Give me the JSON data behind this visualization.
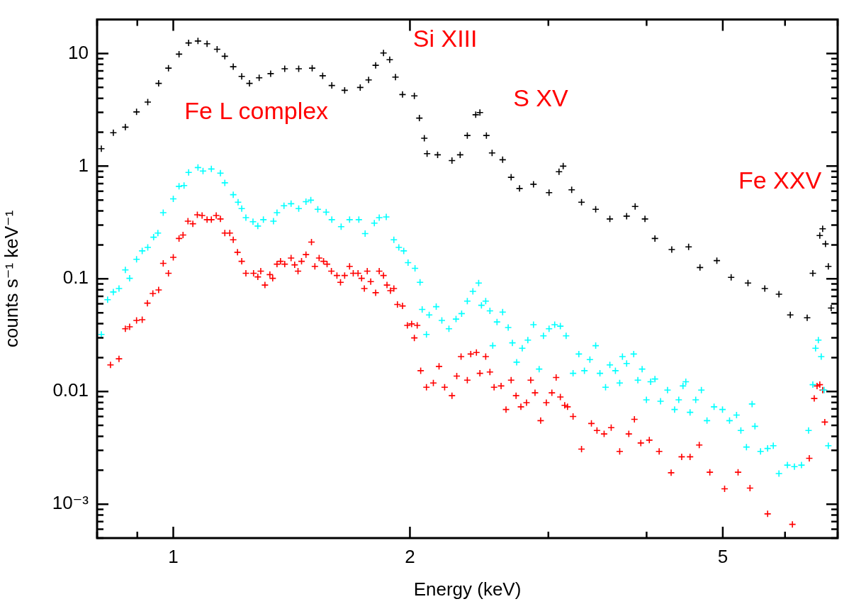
{
  "chart_data": {
    "type": "scatter",
    "xlabel": "Energy (keV)",
    "ylabel": "counts s⁻¹ keV⁻¹",
    "log": "xy",
    "grid": false,
    "legend": false,
    "marker": "cross",
    "xlim": [
      0.8,
      7
    ],
    "ylim": [
      0.0005,
      20
    ],
    "xticks": [
      {
        "value": 0.8,
        "label": null
      },
      {
        "value": 0.9,
        "label": null
      },
      1,
      2,
      {
        "value": 3,
        "label": null
      },
      {
        "value": 4,
        "label": null
      },
      5,
      {
        "value": 6,
        "label": null
      },
      {
        "value": 7,
        "label": null
      }
    ],
    "yticks": [
      {
        "value": 0.0005,
        "label": null
      },
      {
        "value": 0.0006,
        "label": null
      },
      {
        "value": 0.0007,
        "label": null
      },
      {
        "value": 0.0008,
        "label": null
      },
      {
        "value": 0.0009,
        "label": null
      },
      {
        "value": 0.001,
        "label": "10⁻³"
      },
      {
        "value": 0.002,
        "label": null
      },
      {
        "value": 0.003,
        "label": null
      },
      {
        "value": 0.004,
        "label": null
      },
      {
        "value": 0.005,
        "label": null
      },
      {
        "value": 0.006,
        "label": null
      },
      {
        "value": 0.007,
        "label": null
      },
      {
        "value": 0.008,
        "label": null
      },
      {
        "value": 0.009,
        "label": null
      },
      0.01,
      {
        "value": 0.02,
        "label": null
      },
      {
        "value": 0.03,
        "label": null
      },
      {
        "value": 0.04,
        "label": null
      },
      {
        "value": 0.05,
        "label": null
      },
      {
        "value": 0.06,
        "label": null
      },
      {
        "value": 0.07,
        "label": null
      },
      {
        "value": 0.08,
        "label": null
      },
      {
        "value": 0.09,
        "label": null
      },
      0.1,
      {
        "value": 0.2,
        "label": null
      },
      {
        "value": 0.3,
        "label": null
      },
      {
        "value": 0.4,
        "label": null
      },
      {
        "value": 0.5,
        "label": null
      },
      {
        "value": 0.6,
        "label": null
      },
      {
        "value": 0.7,
        "label": null
      },
      {
        "value": 0.8,
        "label": null
      },
      {
        "value": 0.9,
        "label": null
      },
      1,
      {
        "value": 2,
        "label": null
      },
      {
        "value": 3,
        "label": null
      },
      {
        "value": 4,
        "label": null
      },
      {
        "value": 5,
        "label": null
      },
      {
        "value": 6,
        "label": null
      },
      {
        "value": 7,
        "label": null
      },
      {
        "value": 8,
        "label": null
      },
      {
        "value": 9,
        "label": null
      },
      10,
      {
        "value": 20,
        "label": null
      }
    ],
    "annotations": [
      "Fe L complex",
      "Si XIII",
      "S XV",
      "Fe XXV"
    ],
    "series": [
      {
        "color": "#000000",
        "x": [
          0.81,
          0.839,
          0.869,
          0.898,
          0.928,
          0.958,
          0.986,
          1.017,
          1.046,
          1.075,
          1.104,
          1.137,
          1.163,
          1.192,
          1.222,
          1.25,
          1.286,
          1.33,
          1.386,
          1.444,
          1.502,
          1.549,
          1.591,
          1.652,
          1.729,
          1.772,
          1.809,
          1.851,
          1.885,
          1.917,
          1.957,
          2.026,
          2.056,
          2.086,
          2.103,
          2.169,
          2.262,
          2.317,
          2.366,
          2.425,
          2.455,
          2.502,
          2.544,
          2.624,
          2.69,
          2.757,
          2.872,
          3.006,
          3.095,
          3.133,
          3.212,
          3.306,
          3.446,
          3.592,
          3.773,
          3.868,
          3.981,
          4.099,
          4.306,
          4.524,
          4.677,
          4.914,
          5.124,
          5.383,
          5.655,
          5.894,
          6.093,
          6.402,
          6.509,
          6.643,
          6.699,
          6.755,
          6.811,
          6.868
        ],
        "values": [
          1.43,
          1.98,
          2.22,
          3.03,
          3.7,
          5.43,
          7.41,
          9.86,
          12.4,
          12.9,
          12.2,
          10.9,
          9.45,
          7.63,
          6.26,
          5.43,
          6.08,
          6.62,
          7.31,
          7.31,
          7.41,
          6.34,
          5.2,
          4.71,
          4.99,
          5.82,
          7.85,
          10.1,
          8.8,
          6.17,
          4.32,
          4.2,
          2.67,
          1.77,
          1.29,
          1.26,
          1.12,
          1.26,
          1.87,
          2.86,
          2.99,
          1.87,
          1.31,
          1.14,
          0.796,
          0.634,
          0.691,
          0.582,
          0.893,
          1.0,
          0.617,
          0.478,
          0.414,
          0.34,
          0.36,
          0.439,
          0.34,
          0.228,
          0.182,
          0.192,
          0.126,
          0.145,
          0.103,
          0.0918,
          0.082,
          0.0731,
          0.0478,
          0.0451,
          0.112,
          0.242,
          0.278,
          0.204,
          0.129,
          0.0551
        ]
      },
      {
        "color": "#00ffff",
        "x": [
          0.81,
          0.825,
          0.839,
          0.853,
          0.869,
          0.88,
          0.898,
          0.913,
          0.928,
          0.944,
          0.956,
          0.971,
          1.0,
          1.017,
          1.032,
          1.046,
          1.075,
          1.091,
          1.118,
          1.148,
          1.163,
          1.192,
          1.209,
          1.222,
          1.237,
          1.263,
          1.281,
          1.302,
          1.341,
          1.355,
          1.383,
          1.412,
          1.444,
          1.475,
          1.496,
          1.527,
          1.565,
          1.591,
          1.635,
          1.676,
          1.722,
          1.754,
          1.802,
          1.828,
          1.866,
          1.908,
          1.936,
          1.964,
          1.989,
          2.03,
          2.06,
          2.073,
          2.099,
          2.116,
          2.16,
          2.196,
          2.242,
          2.289,
          2.327,
          2.366,
          2.405,
          2.446,
          2.466,
          2.497,
          2.528,
          2.549,
          2.581,
          2.624,
          2.667,
          2.7,
          2.734,
          2.779,
          2.825,
          2.872,
          2.92,
          2.957,
          3.006,
          3.056,
          3.107,
          3.16,
          3.225,
          3.28,
          3.334,
          3.388,
          3.446,
          3.489,
          3.547,
          3.592,
          3.651,
          3.697,
          3.727,
          3.773,
          3.852,
          3.899,
          3.948,
          3.998,
          4.048,
          4.099,
          4.167,
          4.253,
          4.342,
          4.395,
          4.45,
          4.487,
          4.543,
          4.619,
          4.696,
          4.774,
          4.874,
          4.996,
          5.1,
          5.206,
          5.272,
          5.359,
          5.448,
          5.494,
          5.585,
          5.702,
          5.797,
          5.894,
          6.042,
          6.167,
          6.296,
          6.428,
          6.509,
          6.561,
          6.615,
          6.671,
          6.727,
          6.811
        ],
        "values": [
          0.0321,
          0.0653,
          0.0764,
          0.082,
          0.12,
          0.101,
          0.149,
          0.177,
          0.19,
          0.234,
          0.255,
          0.386,
          0.513,
          0.662,
          0.672,
          0.879,
          0.972,
          0.906,
          0.944,
          0.867,
          0.711,
          0.558,
          0.478,
          0.42,
          0.349,
          0.321,
          0.294,
          0.335,
          0.325,
          0.386,
          0.445,
          0.464,
          0.42,
          0.484,
          0.499,
          0.414,
          0.391,
          0.335,
          0.29,
          0.335,
          0.335,
          0.252,
          0.312,
          0.349,
          0.354,
          0.222,
          0.19,
          0.177,
          0.139,
          0.124,
          0.0931,
          0.0535,
          0.0321,
          0.0478,
          0.0566,
          0.0427,
          0.036,
          0.0439,
          0.0491,
          0.0634,
          0.0774,
          0.0918,
          0.0582,
          0.0634,
          0.052,
          0.0255,
          0.0414,
          0.0506,
          0.037,
          0.027,
          0.0182,
          0.0242,
          0.0286,
          0.0392,
          0.0158,
          0.0312,
          0.036,
          0.0392,
          0.038,
          0.0312,
          0.0145,
          0.0215,
          0.0153,
          0.0192,
          0.0255,
          0.0145,
          0.0109,
          0.0172,
          0.0153,
          0.0119,
          0.0204,
          0.0177,
          0.0215,
          0.0126,
          0.0158,
          0.00843,
          0.0122,
          0.0129,
          0.0082,
          0.0103,
          0.00692,
          0.00843,
          0.0112,
          0.0122,
          0.00653,
          0.00843,
          0.0103,
          0.00551,
          0.00731,
          0.00692,
          0.00551,
          0.00617,
          0.00451,
          0.00321,
          0.00774,
          0.00491,
          0.00294,
          0.00312,
          0.0033,
          0.00187,
          0.00222,
          0.00215,
          0.00222,
          0.00451,
          0.0115,
          0.0242,
          0.0286,
          0.0204,
          0.0103,
          0.0033
        ]
      },
      {
        "color": "#ff0000",
        "x": [
          0.832,
          0.853,
          0.869,
          0.88,
          0.898,
          0.913,
          0.927,
          0.942,
          0.958,
          0.971,
          0.986,
          1.0,
          1.017,
          1.029,
          1.044,
          1.059,
          1.073,
          1.088,
          1.104,
          1.118,
          1.134,
          1.148,
          1.163,
          1.18,
          1.192,
          1.207,
          1.222,
          1.237,
          1.265,
          1.281,
          1.292,
          1.308,
          1.327,
          1.338,
          1.355,
          1.369,
          1.386,
          1.412,
          1.427,
          1.441,
          1.456,
          1.475,
          1.499,
          1.514,
          1.533,
          1.553,
          1.569,
          1.589,
          1.615,
          1.632,
          1.652,
          1.676,
          1.694,
          1.718,
          1.736,
          1.75,
          1.765,
          1.783,
          1.809,
          1.828,
          1.851,
          1.87,
          1.889,
          1.908,
          1.928,
          1.957,
          1.985,
          2.01,
          2.026,
          2.043,
          2.064,
          2.099,
          2.142,
          2.178,
          2.214,
          2.262,
          2.294,
          2.323,
          2.366,
          2.39,
          2.43,
          2.455,
          2.497,
          2.528,
          2.559,
          2.612,
          2.65,
          2.69,
          2.729,
          2.768,
          2.814,
          2.849,
          2.885,
          2.933,
          2.982,
          3.031,
          3.069,
          3.107,
          3.147,
          3.173,
          3.225,
          3.306,
          3.403,
          3.459,
          3.532,
          3.606,
          3.697,
          3.797,
          3.86,
          3.933,
          4.032,
          4.15,
          4.298,
          4.433,
          4.543,
          4.667,
          4.814,
          5.027,
          5.229,
          5.415,
          5.702,
          6.131,
          6.442,
          6.536,
          6.59,
          6.643,
          6.699,
          6.741
        ],
        "values": [
          0.0172,
          0.0195,
          0.036,
          0.0375,
          0.0427,
          0.0433,
          0.0608,
          0.0741,
          0.0796,
          0.137,
          0.112,
          0.155,
          0.228,
          0.245,
          0.325,
          0.308,
          0.37,
          0.365,
          0.335,
          0.335,
          0.365,
          0.34,
          0.255,
          0.255,
          0.222,
          0.172,
          0.143,
          0.112,
          0.112,
          0.104,
          0.117,
          0.088,
          0.109,
          0.101,
          0.135,
          0.143,
          0.135,
          0.153,
          0.133,
          0.117,
          0.143,
          0.164,
          0.212,
          0.129,
          0.153,
          0.143,
          0.135,
          0.117,
          0.107,
          0.0931,
          0.107,
          0.129,
          0.112,
          0.112,
          0.101,
          0.082,
          0.117,
          0.0944,
          0.0753,
          0.117,
          0.107,
          0.088,
          0.0785,
          0.082,
          0.0592,
          0.0574,
          0.0386,
          0.0398,
          0.0299,
          0.0386,
          0.0153,
          0.0109,
          0.0119,
          0.0167,
          0.0109,
          0.00918,
          0.0137,
          0.0204,
          0.0126,
          0.0215,
          0.0222,
          0.0145,
          0.0204,
          0.0149,
          0.0109,
          0.0112,
          0.00692,
          0.0126,
          0.00918,
          0.00731,
          0.00796,
          0.0126,
          0.00973,
          0.00551,
          0.00796,
          0.00973,
          0.0133,
          0.00893,
          0.00753,
          0.00731,
          0.006,
          0.00308,
          0.0052,
          0.00451,
          0.0042,
          0.00478,
          0.00294,
          0.0042,
          0.00566,
          0.00349,
          0.0037,
          0.00294,
          0.0019,
          0.00263,
          0.00263,
          0.00335,
          0.00192,
          0.00137,
          0.00192,
          0.00139,
          0.00082,
          0.000662,
          0.00255,
          0.00867,
          0.0112,
          0.0115,
          0.0103,
          0.00535
        ]
      }
    ]
  }
}
